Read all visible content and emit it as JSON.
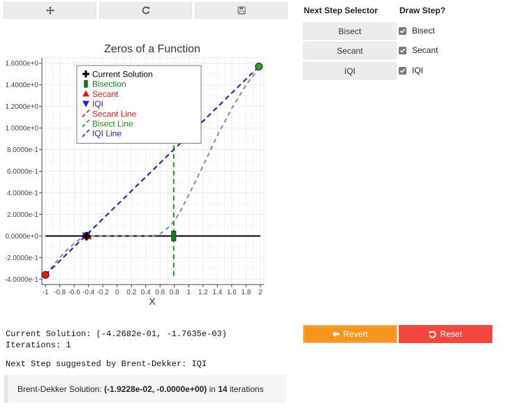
{
  "toolbar": {
    "buttons": [
      {
        "name": "pan",
        "icon": "move-icon"
      },
      {
        "name": "reset-axes",
        "icon": "refresh-icon"
      },
      {
        "name": "save",
        "icon": "save-icon"
      }
    ]
  },
  "chart_data": {
    "type": "line",
    "title": "Zeros of a Function",
    "xlabel": "X",
    "ylabel": "",
    "xlim": [
      -1.05,
      2.05
    ],
    "ylim": [
      -0.45,
      1.65
    ],
    "xticks": [
      -1,
      -0.8,
      -0.6,
      -0.4,
      -0.2,
      0,
      0.2,
      0.4,
      0.6,
      0.8,
      1,
      1.2,
      1.4,
      1.6,
      1.8,
      2
    ],
    "xtick_labels": [
      "-1",
      "-0.8",
      "-0.6",
      "-0.4",
      "-0.2",
      "0",
      "0.2",
      "0.4",
      "0.6",
      "0.8",
      "1",
      "1.2",
      "1.4",
      "1.6",
      "1.8",
      "2"
    ],
    "yticks": [
      -0.4,
      -0.2,
      0,
      0.2,
      0.4,
      0.6,
      0.8,
      1.0,
      1.2,
      1.4,
      1.6
    ],
    "ytick_labels": [
      "-4.0000e-1",
      "-2.0000e-1",
      "0.0000e+0",
      "2.0000e-1",
      "4.0000e-1",
      "6.0000e-1",
      "8.0000e-1",
      "1.0000e+0",
      "1.2000e+0",
      "1.4000e+0",
      "1.6000e+0"
    ],
    "grid": true,
    "legend_position": "top-left",
    "function_curve": {
      "color": "#888888",
      "x": [
        -1,
        -0.9,
        -0.8,
        -0.7,
        -0.6,
        -0.5,
        -0.43,
        -0.4,
        -0.3,
        -0.2,
        0,
        0.2,
        0.4,
        0.5,
        0.6,
        0.7,
        0.8,
        0.9,
        1.0,
        1.2,
        1.4,
        1.6,
        1.8,
        2.0
      ],
      "y": [
        -0.36,
        -0.28,
        -0.2,
        -0.13,
        -0.07,
        -0.02,
        0,
        0.0,
        0.0,
        0.0,
        0.0,
        0.0,
        0.0,
        0.0,
        0.02,
        0.07,
        0.14,
        0.25,
        0.38,
        0.65,
        0.93,
        1.18,
        1.4,
        1.57
      ]
    },
    "zero_line": {
      "y": 0,
      "x": [
        -1,
        2
      ],
      "color": "#000000"
    },
    "points": [
      {
        "label": "Current Solution",
        "x": -0.427,
        "y": -0.0018,
        "marker": "cross",
        "color": "#000000"
      },
      {
        "label": "Bisection",
        "x": 0.79,
        "y": 0.0,
        "marker": "rect",
        "color": "#1a7a1a"
      },
      {
        "label": "Secant",
        "x": -0.41,
        "y": 0.0,
        "marker": "triangle-up",
        "color": "#e31a1c"
      },
      {
        "label": "IQI",
        "x": -0.43,
        "y": 0.0,
        "marker": "triangle-down",
        "color": "#1f1fd0"
      },
      {
        "label": "endpoint-left",
        "x": -1.0,
        "y": -0.36,
        "marker": "circle",
        "color": "#e31a1c"
      },
      {
        "label": "endpoint-right",
        "x": 1.98,
        "y": 1.57,
        "marker": "circle",
        "color": "#2e9e2e"
      }
    ],
    "series_lines": [
      {
        "name": "Secant Line",
        "color": "#e31a1c",
        "x": [
          -1.0,
          1.98
        ],
        "y": [
          -0.36,
          1.57
        ]
      },
      {
        "name": "Bisect Line",
        "color": "#1a9a1a",
        "x": [
          0.79,
          0.79
        ],
        "y": [
          -0.37,
          1.58
        ]
      },
      {
        "name": "IQI Line",
        "color": "#2222cc",
        "x": [
          -1.0,
          1.98
        ],
        "y": [
          -0.36,
          1.57
        ]
      }
    ],
    "legend": [
      {
        "label": "Current Solution",
        "marker": "cross",
        "color": "#000000"
      },
      {
        "label": "Bisection",
        "marker": "rect",
        "color": "#1a7a1a"
      },
      {
        "label": "Secant",
        "marker": "triangle-up",
        "color": "#e31a1c"
      },
      {
        "label": "IQI",
        "marker": "triangle-down",
        "color": "#1f1fd0"
      },
      {
        "label": "Secant Line",
        "marker": "dash",
        "color": "#e31a1c"
      },
      {
        "label": "Bisect Line",
        "marker": "dash",
        "color": "#1a9a1a"
      },
      {
        "label": "IQI Line",
        "marker": "dash",
        "color": "#2222cc"
      }
    ]
  },
  "selector": {
    "header": "Next Step Selector",
    "buttons": [
      "Bisect",
      "Secant",
      "IQI"
    ]
  },
  "draw_step": {
    "header": "Draw Step?",
    "items": [
      {
        "label": "Bisect",
        "checked": true
      },
      {
        "label": "Secant",
        "checked": true
      },
      {
        "label": "IQI",
        "checked": true
      }
    ]
  },
  "status": {
    "current_solution": "Current Solution: (-4.2682e-01, -1.7635e-03)",
    "iterations": "Iterations: 1",
    "next_step": "Next Step suggested by Brent-Dekker: IQI"
  },
  "actions": {
    "revert_label": "Revert",
    "revert_color": "#f7941d",
    "reset_label": "Reset",
    "reset_color": "#f2473f"
  },
  "result": {
    "prefix": "Brent-Dekker Solution: ",
    "solution": "(-1.9228e-02, -0.0000e+00)",
    "middle": " in ",
    "iterations": "14",
    "suffix": " iterations"
  }
}
